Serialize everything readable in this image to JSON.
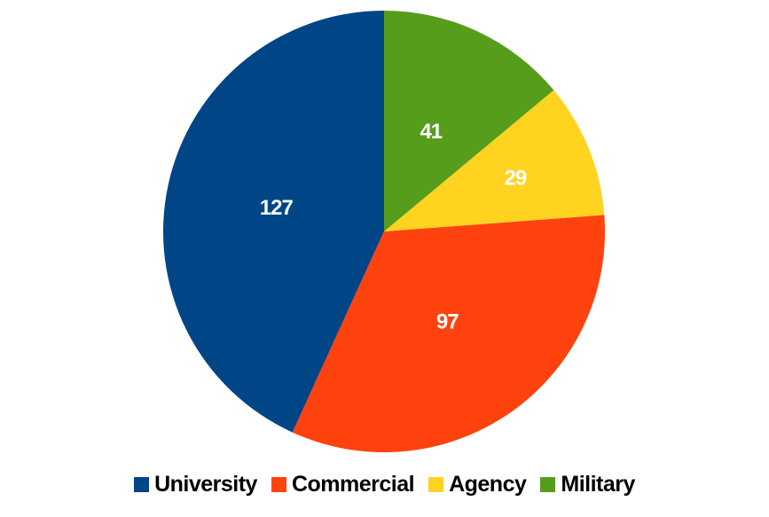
{
  "chart_data": {
    "type": "pie",
    "title": "",
    "slices": [
      {
        "label": "University",
        "value": 127,
        "color": "#004586"
      },
      {
        "label": "Commercial",
        "value": 97,
        "color": "#ff420e"
      },
      {
        "label": "Agency",
        "value": 29,
        "color": "#ffd320"
      },
      {
        "label": "Military",
        "value": 41,
        "color": "#579d1c"
      }
    ],
    "start_angle_deg": 0,
    "direction": "counterclockwise",
    "legend_position": "bottom",
    "data_labels_shown": true
  }
}
